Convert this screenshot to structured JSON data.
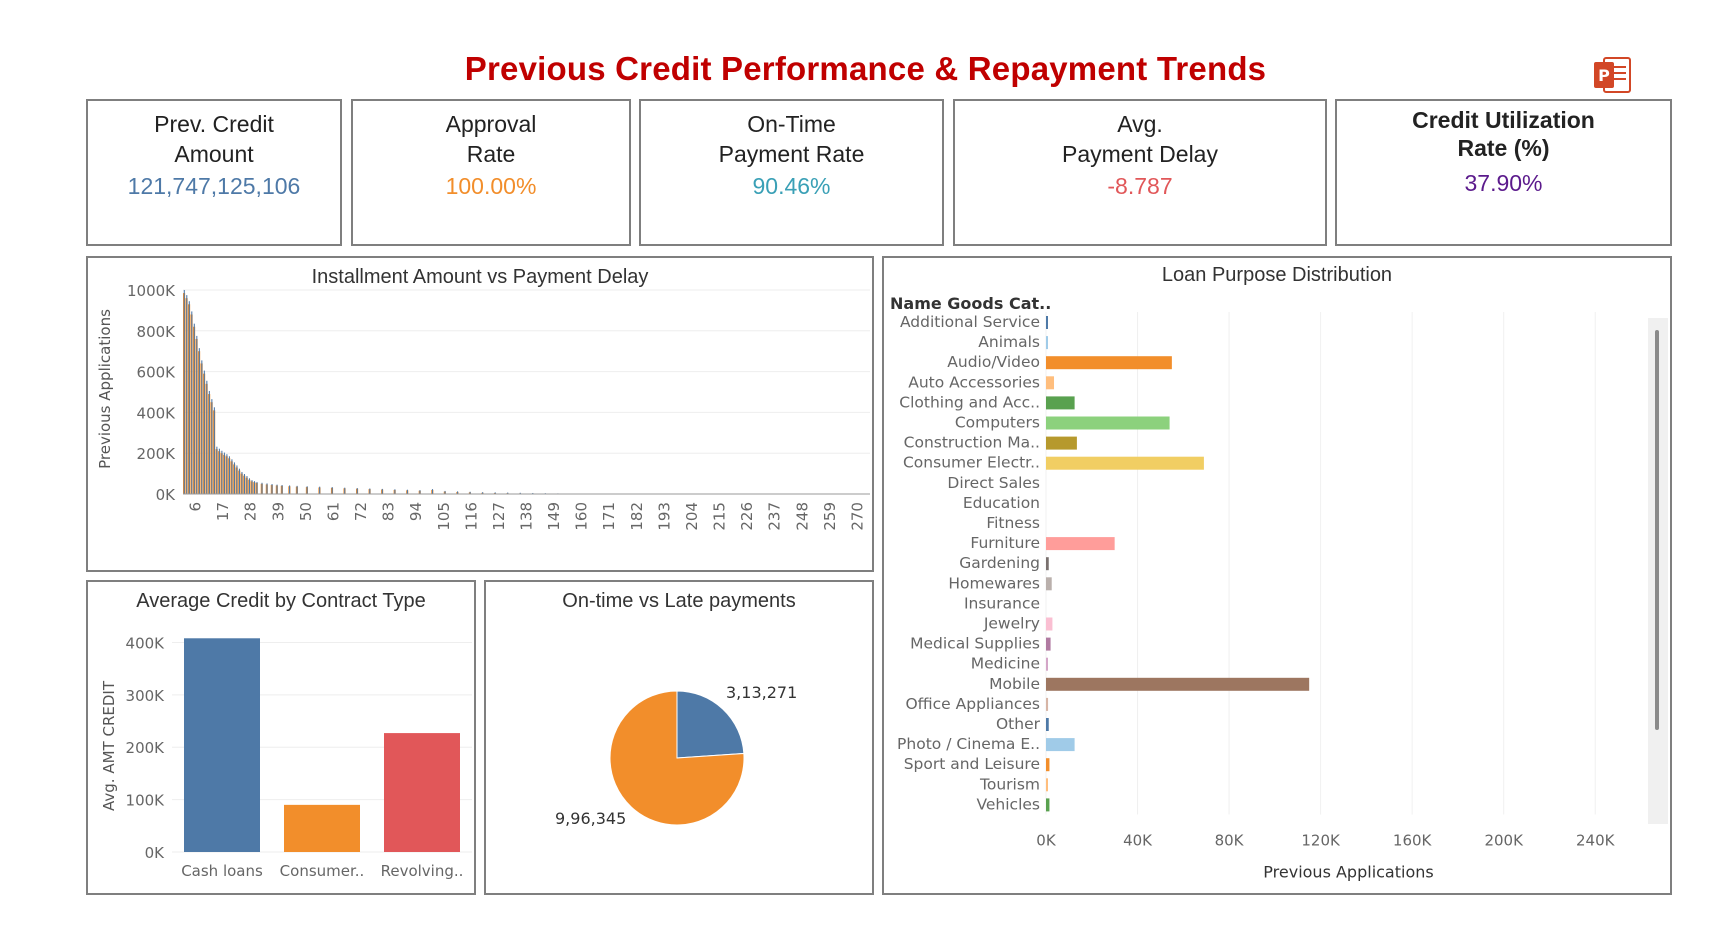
{
  "title": "Previous Credit Performance & Repayment Trends",
  "export_icon": "powerpoint-icon",
  "colors": {
    "blue": "#4e79a7",
    "orange": "#f28e2b",
    "red": "#e15759"
  },
  "kpis": [
    {
      "label_line1": "Prev. Credit",
      "label_line2": "Amount",
      "value": "121,747,125,106",
      "color": "#4e79a7"
    },
    {
      "label_line1": "Approval",
      "label_line2": "Rate",
      "value": "100.00%",
      "color": "#f28e2b"
    },
    {
      "label_line1": "On-Time",
      "label_line2": "Payment Rate",
      "value": "90.46%",
      "color": "#3aa0b6"
    },
    {
      "label_line1": "Avg.",
      "label_line2": "Payment Delay",
      "value": "-8.787",
      "color": "#e15759"
    },
    {
      "label_line1": "Credit Utilization",
      "label_line2": "Rate (%)",
      "value": "37.90%",
      "color": "#5b1a8c"
    }
  ],
  "chart_data": [
    {
      "type": "bar",
      "title": "Installment Amount vs Payment Delay",
      "ylabel": "Previous Applications",
      "xlabel": "",
      "ylim": [
        0,
        1000000
      ],
      "y_ticks": [
        "0K",
        "200K",
        "400K",
        "600K",
        "800K",
        "1000K"
      ],
      "y_tick_values": [
        0,
        200000,
        400000,
        600000,
        800000,
        1000000
      ],
      "x_ticks": [
        "6",
        "17",
        "28",
        "39",
        "50",
        "61",
        "72",
        "83",
        "94",
        "105",
        "116",
        "127",
        "138",
        "149",
        "160",
        "171",
        "182",
        "193",
        "204",
        "215",
        "226",
        "237",
        "248",
        "259",
        "270"
      ],
      "x_range": [
        1,
        275
      ],
      "series": [
        {
          "color": "#f28e2b",
          "points": [
            [
              1,
              985000
            ],
            [
              2,
              960000
            ],
            [
              3,
              930000
            ],
            [
              4,
              880000
            ],
            [
              5,
              820000
            ],
            [
              6,
              760000
            ],
            [
              7,
              700000
            ],
            [
              8,
              640000
            ],
            [
              9,
              590000
            ],
            [
              10,
              540000
            ],
            [
              11,
              490000
            ],
            [
              12,
              450000
            ],
            [
              13,
              410000
            ],
            [
              14,
              220000
            ],
            [
              15,
              210000
            ],
            [
              16,
              200000
            ],
            [
              17,
              192000
            ],
            [
              18,
              185000
            ],
            [
              19,
              175000
            ],
            [
              20,
              160000
            ],
            [
              21,
              145000
            ],
            [
              22,
              130000
            ],
            [
              23,
              115000
            ],
            [
              24,
              100000
            ],
            [
              25,
              90000
            ],
            [
              26,
              80000
            ],
            [
              27,
              70000
            ],
            [
              28,
              62000
            ],
            [
              29,
              58000
            ],
            [
              30,
              54000
            ],
            [
              32,
              50000
            ],
            [
              34,
              47000
            ],
            [
              36,
              44000
            ],
            [
              38,
              42000
            ],
            [
              40,
              40000
            ],
            [
              43,
              38000
            ],
            [
              46,
              36000
            ],
            [
              50,
              34000
            ],
            [
              55,
              32000
            ],
            [
              60,
              30000
            ],
            [
              65,
              28000
            ],
            [
              70,
              26000
            ],
            [
              75,
              24000
            ],
            [
              80,
              22000
            ],
            [
              85,
              20000
            ],
            [
              90,
              18000
            ],
            [
              95,
              16000
            ],
            [
              100,
              20000
            ],
            [
              105,
              12000
            ],
            [
              110,
              10000
            ],
            [
              115,
              8000
            ],
            [
              120,
              6000
            ],
            [
              125,
              5000
            ],
            [
              130,
              4000
            ],
            [
              135,
              3000
            ],
            [
              140,
              2000
            ]
          ]
        },
        {
          "color": "#4e79a7",
          "points": [
            [
              1,
              1000000
            ],
            [
              2,
              975000
            ],
            [
              3,
              945000
            ],
            [
              4,
              895000
            ],
            [
              5,
              835000
            ],
            [
              6,
              775000
            ],
            [
              7,
              715000
            ],
            [
              8,
              655000
            ],
            [
              9,
              605000
            ],
            [
              10,
              555000
            ],
            [
              11,
              505000
            ],
            [
              12,
              465000
            ],
            [
              13,
              425000
            ],
            [
              14,
              232000
            ],
            [
              15,
              222000
            ],
            [
              16,
              212000
            ],
            [
              17,
              203000
            ],
            [
              18,
              195000
            ],
            [
              19,
              185000
            ],
            [
              20,
              170000
            ],
            [
              21,
              155000
            ],
            [
              22,
              140000
            ],
            [
              23,
              124000
            ],
            [
              24,
              108000
            ],
            [
              25,
              98000
            ],
            [
              26,
              88000
            ],
            [
              27,
              77000
            ],
            [
              28,
              68000
            ],
            [
              29,
              63000
            ],
            [
              30,
              59000
            ],
            [
              32,
              55000
            ],
            [
              34,
              52000
            ],
            [
              36,
              49000
            ],
            [
              38,
              46000
            ],
            [
              40,
              44000
            ],
            [
              43,
              42000
            ],
            [
              46,
              40000
            ],
            [
              50,
              38000
            ],
            [
              55,
              36000
            ],
            [
              60,
              34000
            ],
            [
              65,
              31000
            ],
            [
              70,
              29000
            ],
            [
              75,
              27000
            ],
            [
              80,
              25000
            ],
            [
              85,
              23000
            ],
            [
              90,
              21000
            ],
            [
              95,
              19000
            ],
            [
              100,
              24000
            ],
            [
              105,
              15000
            ],
            [
              110,
              13000
            ],
            [
              115,
              11000
            ],
            [
              120,
              9000
            ],
            [
              125,
              8000
            ],
            [
              130,
              7000
            ],
            [
              135,
              6000
            ],
            [
              140,
              5000
            ],
            [
              145,
              4000
            ],
            [
              150,
              3000
            ]
          ]
        }
      ]
    },
    {
      "type": "bar",
      "title": "Average Credit by Contract Type",
      "ylabel": "Avg. AMT CREDIT",
      "xlabel": "",
      "ylim": [
        0,
        420000
      ],
      "y_ticks": [
        "0K",
        "100K",
        "200K",
        "300K",
        "400K"
      ],
      "y_tick_values": [
        0,
        100000,
        200000,
        300000,
        400000
      ],
      "categories": [
        "Cash loans",
        "Consumer..",
        "Revolving.."
      ],
      "values": [
        408000,
        90000,
        227000
      ],
      "colors": [
        "#4e79a7",
        "#f28e2b",
        "#e15759"
      ]
    },
    {
      "type": "pie",
      "title": "On-time vs Late payments",
      "labels": [
        "3,13,271",
        "9,96,345"
      ],
      "values": [
        313271,
        996345
      ],
      "colors": [
        "#4e79a7",
        "#f28e2b"
      ]
    },
    {
      "type": "bar",
      "orientation": "horizontal",
      "title": "Loan Purpose Distribution",
      "column_header": "Name Goods Cat..",
      "xlabel": "Previous Applications",
      "xlim": [
        0,
        260000
      ],
      "x_ticks": [
        "0K",
        "40K",
        "80K",
        "120K",
        "160K",
        "200K",
        "240K"
      ],
      "x_tick_values": [
        0,
        40000,
        80000,
        120000,
        160000,
        200000,
        240000
      ],
      "categories": [
        "Additional Service",
        "Animals",
        "Audio/Video",
        "Auto Accessories",
        "Clothing and Acc..",
        "Computers",
        "Construction Ma..",
        "Consumer Electr..",
        "Direct Sales",
        "Education",
        "Fitness",
        "Furniture",
        "Gardening",
        "Homewares",
        "Insurance",
        "Jewelry",
        "Medical Supplies",
        "Medicine",
        "Mobile",
        "Office Appliances",
        "Other",
        "Photo / Cinema E..",
        "Sport and Leisure",
        "Tourism",
        "Vehicles"
      ],
      "values": [
        100,
        100,
        55000,
        3500,
        12500,
        54000,
        13500,
        69000,
        0,
        0,
        0,
        30000,
        1200,
        2500,
        0,
        2800,
        2000,
        800,
        115000,
        900,
        1200,
        12500,
        1500,
        500,
        1500
      ],
      "colors": [
        "#4e79a7",
        "#a0cbe8",
        "#f28e2b",
        "#ffbe7d",
        "#59a14f",
        "#8cd17d",
        "#b6992d",
        "#f1ce63",
        "#499894",
        "#86bcb6",
        "#e15759",
        "#ff9d9a",
        "#79706e",
        "#bab0ac",
        "#d37295",
        "#fabfd2",
        "#b07aa1",
        "#d4a6c8",
        "#9d7660",
        "#d7b5a6",
        "#4e79a7",
        "#a0cbe8",
        "#f28e2b",
        "#ffbe7d",
        "#59a14f"
      ]
    }
  ]
}
